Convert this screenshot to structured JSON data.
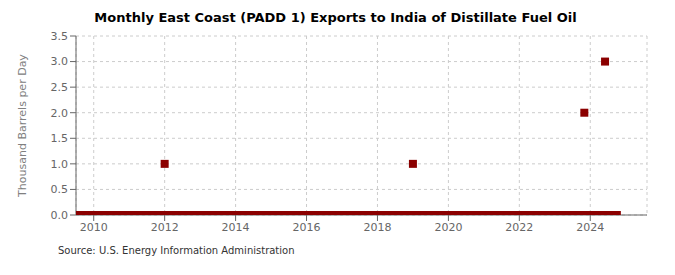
{
  "chart_data": {
    "type": "scatter",
    "title": "Monthly East Coast (PADD 1) Exports to India of Distillate Fuel Oil",
    "ylabel": "Thousand Barrels per Day",
    "annotations": [
      "Source: U.S. Energy Information Administration"
    ],
    "color": "#8b0000",
    "marker": "square",
    "grid": true,
    "xlim": [
      2009.5,
      2025.6
    ],
    "xticks": [
      2010,
      2012,
      2014,
      2016,
      2018,
      2020,
      2022,
      2024
    ],
    "ylim": [
      0,
      3.5
    ],
    "yticks": [
      {
        "value": 0.0,
        "label": "0.0"
      },
      {
        "value": 0.5,
        "label": "0.5"
      },
      {
        "value": 1.0,
        "label": "1.0"
      },
      {
        "value": 1.5,
        "label": "1.5"
      },
      {
        "value": 2.0,
        "label": "2.0"
      },
      {
        "value": 2.5,
        "label": "2.5"
      },
      {
        "value": 3.0,
        "label": "3.0"
      },
      {
        "value": 3.5,
        "label": "3.5"
      }
    ],
    "x": [
      2009.583,
      2009.667,
      2009.75,
      2009.833,
      2009.917,
      2010.0,
      2010.083,
      2010.167,
      2010.25,
      2010.333,
      2010.417,
      2010.5,
      2010.583,
      2010.667,
      2010.75,
      2010.833,
      2010.917,
      2011.0,
      2011.083,
      2011.167,
      2011.25,
      2011.333,
      2011.417,
      2011.5,
      2011.583,
      2011.667,
      2011.75,
      2011.833,
      2011.917,
      2012.0,
      2012.083,
      2012.167,
      2012.25,
      2012.333,
      2012.417,
      2012.5,
      2012.583,
      2012.667,
      2012.75,
      2012.833,
      2012.917,
      2013.0,
      2013.083,
      2013.167,
      2013.25,
      2013.333,
      2013.417,
      2013.5,
      2013.583,
      2013.667,
      2013.75,
      2013.833,
      2013.917,
      2014.0,
      2014.083,
      2014.167,
      2014.25,
      2014.333,
      2014.417,
      2014.5,
      2014.583,
      2014.667,
      2014.75,
      2014.833,
      2014.917,
      2015.0,
      2015.083,
      2015.167,
      2015.25,
      2015.333,
      2015.417,
      2015.5,
      2015.583,
      2015.667,
      2015.75,
      2015.833,
      2015.917,
      2016.0,
      2016.083,
      2016.167,
      2016.25,
      2016.333,
      2016.417,
      2016.5,
      2016.583,
      2016.667,
      2016.75,
      2016.833,
      2016.917,
      2017.0,
      2017.083,
      2017.167,
      2017.25,
      2017.333,
      2017.417,
      2017.5,
      2017.583,
      2017.667,
      2017.75,
      2017.833,
      2017.917,
      2018.0,
      2018.083,
      2018.167,
      2018.25,
      2018.333,
      2018.417,
      2018.5,
      2018.583,
      2018.667,
      2018.75,
      2018.833,
      2018.917,
      2019.0,
      2019.083,
      2019.167,
      2019.25,
      2019.333,
      2019.417,
      2019.5,
      2019.583,
      2019.667,
      2019.75,
      2019.833,
      2019.917,
      2020.0,
      2020.083,
      2020.167,
      2020.25,
      2020.333,
      2020.417,
      2020.5,
      2020.583,
      2020.667,
      2020.75,
      2020.833,
      2020.917,
      2021.0,
      2021.083,
      2021.167,
      2021.25,
      2021.333,
      2021.417,
      2021.5,
      2021.583,
      2021.667,
      2021.75,
      2021.833,
      2021.917,
      2022.0,
      2022.083,
      2022.167,
      2022.25,
      2022.333,
      2022.417,
      2022.5,
      2022.583,
      2022.667,
      2022.75,
      2022.833,
      2022.917,
      2023.0,
      2023.083,
      2023.167,
      2023.25,
      2023.333,
      2023.417,
      2023.5,
      2023.583,
      2023.667,
      2023.75,
      2023.833,
      2023.917,
      2024.0,
      2024.083,
      2024.167,
      2024.25,
      2024.333,
      2024.417,
      2024.5,
      2024.583,
      2024.667,
      2024.75
    ],
    "values": [
      0.0,
      0.0,
      0.0,
      0.0,
      0.0,
      0.0,
      0.0,
      0.0,
      0.0,
      0.0,
      0.0,
      0.0,
      0.0,
      0.0,
      0.0,
      0.0,
      0.0,
      0.0,
      0.0,
      0.0,
      0.0,
      0.0,
      0.0,
      0.0,
      0.0,
      0.0,
      0.0,
      0.0,
      0.0,
      1.0,
      0.0,
      0.0,
      0.0,
      0.0,
      0.0,
      0.0,
      0.0,
      0.0,
      0.0,
      0.0,
      0.0,
      0.0,
      0.0,
      0.0,
      0.0,
      0.0,
      0.0,
      0.0,
      0.0,
      0.0,
      0.0,
      0.0,
      0.0,
      0.0,
      0.0,
      0.0,
      0.0,
      0.0,
      0.0,
      0.0,
      0.0,
      0.0,
      0.0,
      0.0,
      0.0,
      0.0,
      0.0,
      0.0,
      0.0,
      0.0,
      0.0,
      0.0,
      0.0,
      0.0,
      0.0,
      0.0,
      0.0,
      0.0,
      0.0,
      0.0,
      0.0,
      0.0,
      0.0,
      0.0,
      0.0,
      0.0,
      0.0,
      0.0,
      0.0,
      0.0,
      0.0,
      0.0,
      0.0,
      0.0,
      0.0,
      0.0,
      0.0,
      0.0,
      0.0,
      0.0,
      0.0,
      0.0,
      0.0,
      0.0,
      0.0,
      0.0,
      0.0,
      0.0,
      0.0,
      0.0,
      0.0,
      0.0,
      0.0,
      1.0,
      0.0,
      0.0,
      0.0,
      0.0,
      0.0,
      0.0,
      0.0,
      0.0,
      0.0,
      0.0,
      0.0,
      0.0,
      0.0,
      0.0,
      0.0,
      0.0,
      0.0,
      0.0,
      0.0,
      0.0,
      0.0,
      0.0,
      0.0,
      0.0,
      0.0,
      0.0,
      0.0,
      0.0,
      0.0,
      0.0,
      0.0,
      0.0,
      0.0,
      0.0,
      0.0,
      0.0,
      0.0,
      0.0,
      0.0,
      0.0,
      0.0,
      0.0,
      0.0,
      0.0,
      0.0,
      0.0,
      0.0,
      0.0,
      0.0,
      0.0,
      0.0,
      0.0,
      0.0,
      0.0,
      0.0,
      0.0,
      0.0,
      2.0,
      0.0,
      0.0,
      0.0,
      0.0,
      0.0,
      0.0,
      3.0,
      0.0,
      0.0,
      0.0,
      0.0
    ]
  }
}
